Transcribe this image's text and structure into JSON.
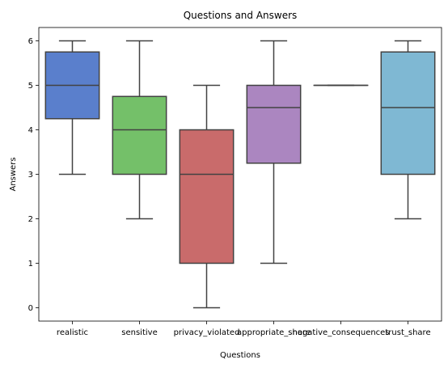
{
  "chart_data": {
    "type": "box",
    "title": "Questions and Answers",
    "xlabel": "Questions",
    "ylabel": "Answers",
    "ylim": [
      -0.3,
      6.3
    ],
    "yticks": [
      0,
      1,
      2,
      3,
      4,
      5,
      6
    ],
    "ytick_labels": [
      "0",
      "1",
      "2",
      "3",
      "4",
      "5",
      "6"
    ],
    "grid": false,
    "categories": [
      "realistic",
      "sensitive",
      "privacy_violated",
      "appropriate_share",
      "negative_consequences",
      "trust_share"
    ],
    "boxes": [
      {
        "category": "realistic",
        "whisker_low": 3,
        "q1": 4.25,
        "median": 5,
        "q3": 5.75,
        "whisker_high": 6,
        "color": "#5a7fcc"
      },
      {
        "category": "sensitive",
        "whisker_low": 2,
        "q1": 3,
        "median": 4,
        "q3": 4.75,
        "whisker_high": 6,
        "color": "#74c069"
      },
      {
        "category": "privacy_violated",
        "whisker_low": 0,
        "q1": 1,
        "median": 3,
        "q3": 4,
        "whisker_high": 5,
        "color": "#c96b6b"
      },
      {
        "category": "appropriate_share",
        "whisker_low": 1,
        "q1": 3.25,
        "median": 4.5,
        "q3": 5,
        "whisker_high": 6,
        "color": "#ab86c0"
      },
      {
        "category": "negative_consequences",
        "whisker_low": 5,
        "q1": 5,
        "median": 5,
        "q3": 5,
        "whisker_high": 5,
        "color": "#d5ba82"
      },
      {
        "category": "trust_share",
        "whisker_low": 2,
        "q1": 3,
        "median": 4.5,
        "q3": 5.75,
        "whisker_high": 6,
        "color": "#7fb8d3"
      }
    ]
  }
}
